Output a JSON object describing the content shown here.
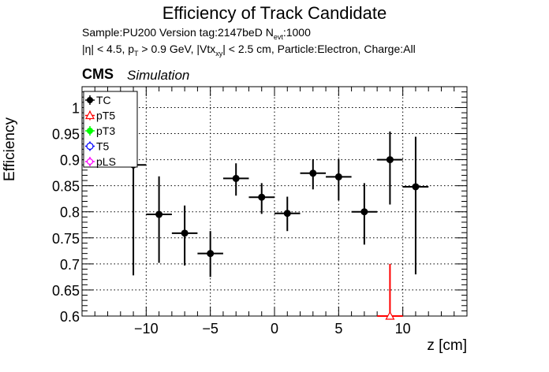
{
  "header": {
    "title": "Efficiency of Track Candidate",
    "sample_text": "Sample:PU200   Version tag:2147beD  N",
    "sample_sub": "evt",
    "sample_tail": ":1000",
    "cuts": {
      "eta": "|η| < 4.5, p",
      "pt_sub": "T",
      "pt_rest": " > 0.9 GeV, |Vtx",
      "vtx_sub": "xy",
      "rest": "| < 2.5 cm, Particle:Electron, Charge:All"
    },
    "cms": "CMS",
    "simulation": "Simulation"
  },
  "chart_data": {
    "type": "scatter",
    "xlabel": "z [cm]",
    "ylabel": "Efficiency",
    "xlim": [
      -15,
      15
    ],
    "ylim": [
      0.6,
      1.04
    ],
    "xticks": [
      -10,
      -5,
      0,
      5,
      10
    ],
    "xtick_labels": [
      "−10",
      "−5",
      "0",
      "5",
      "10"
    ],
    "yticks": [
      0.6,
      0.65,
      0.7,
      0.75,
      0.8,
      0.85,
      0.9,
      0.95,
      1.0
    ],
    "ytick_labels": [
      "0.6",
      "0.65",
      "0.7",
      "0.75",
      "0.8",
      "0.85",
      "0.9",
      "0.95",
      "1"
    ],
    "grid": true,
    "legend_position": "top-left",
    "legend": [
      {
        "name": "TC",
        "color": "#000000",
        "marker": "circle-filled"
      },
      {
        "name": "pT5",
        "color": "#ff0000",
        "marker": "triangle-open"
      },
      {
        "name": "pT3",
        "color": "#00ff00",
        "marker": "circle-filled"
      },
      {
        "name": "T5",
        "color": "#0000ff",
        "marker": "circle-open"
      },
      {
        "name": "pLS",
        "color": "#ff00ff",
        "marker": "star-open"
      }
    ],
    "series": [
      {
        "name": "TC",
        "color": "#000000",
        "points": [
          {
            "x": -11,
            "xerr": 1,
            "y": 0.89,
            "ylo": 0.678,
            "yhi": 0.89
          },
          {
            "x": -9,
            "xerr": 1,
            "y": 0.795,
            "ylo": 0.702,
            "yhi": 0.868
          },
          {
            "x": -7,
            "xerr": 1,
            "y": 0.759,
            "ylo": 0.697,
            "yhi": 0.812
          },
          {
            "x": -5,
            "xerr": 1,
            "y": 0.72,
            "ylo": 0.675,
            "yhi": 0.763
          },
          {
            "x": -3,
            "xerr": 1,
            "y": 0.864,
            "ylo": 0.831,
            "yhi": 0.893
          },
          {
            "x": -1,
            "xerr": 1,
            "y": 0.828,
            "ylo": 0.796,
            "yhi": 0.855
          },
          {
            "x": 1,
            "xerr": 1,
            "y": 0.797,
            "ylo": 0.763,
            "yhi": 0.829
          },
          {
            "x": 3,
            "xerr": 1,
            "y": 0.874,
            "ylo": 0.843,
            "yhi": 0.901
          },
          {
            "x": 5,
            "xerr": 1,
            "y": 0.867,
            "ylo": 0.822,
            "yhi": 0.901
          },
          {
            "x": 7,
            "xerr": 1,
            "y": 0.8,
            "ylo": 0.737,
            "yhi": 0.855
          },
          {
            "x": 9,
            "xerr": 1,
            "y": 0.9,
            "ylo": 0.814,
            "yhi": 0.954
          },
          {
            "x": 11,
            "xerr": 1,
            "y": 0.848,
            "ylo": 0.68,
            "yhi": 0.944
          }
        ]
      },
      {
        "name": "pT5",
        "color": "#ff0000",
        "points": [
          {
            "x": 9,
            "xerr": 1,
            "y": 0.6,
            "ylo": 0.6,
            "yhi": 0.7
          }
        ]
      }
    ]
  }
}
